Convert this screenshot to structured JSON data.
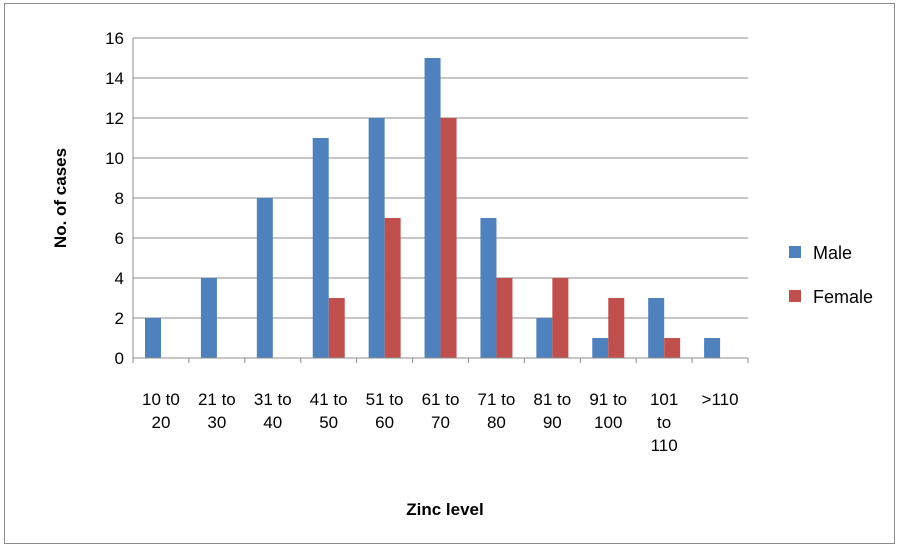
{
  "chart_data": {
    "type": "bar",
    "title": "",
    "xlabel": "Zinc level",
    "ylabel": "No. of cases",
    "categories": [
      [
        "10 t0",
        "20"
      ],
      [
        "21 to",
        "30"
      ],
      [
        "31 to",
        "40"
      ],
      [
        "41 to",
        "50"
      ],
      [
        "51 to",
        "60"
      ],
      [
        "61 to",
        "70"
      ],
      [
        "71 to",
        "80"
      ],
      [
        "81 to",
        "90"
      ],
      [
        "91 to",
        "100"
      ],
      [
        "101",
        "to",
        "110"
      ],
      [
        ">110"
      ]
    ],
    "series": [
      {
        "name": "Male",
        "color": "#4f81bd",
        "values": [
          2,
          4,
          8,
          11,
          12,
          15,
          7,
          2,
          1,
          3,
          1
        ]
      },
      {
        "name": "Female",
        "color": "#c0504d",
        "values": [
          0,
          0,
          0,
          3,
          7,
          12,
          4,
          4,
          3,
          1,
          0
        ]
      }
    ],
    "ylim": [
      0,
      16
    ],
    "yticks": [
      0,
      2,
      4,
      6,
      8,
      10,
      12,
      14,
      16
    ],
    "grid": true,
    "legend": "right"
  }
}
